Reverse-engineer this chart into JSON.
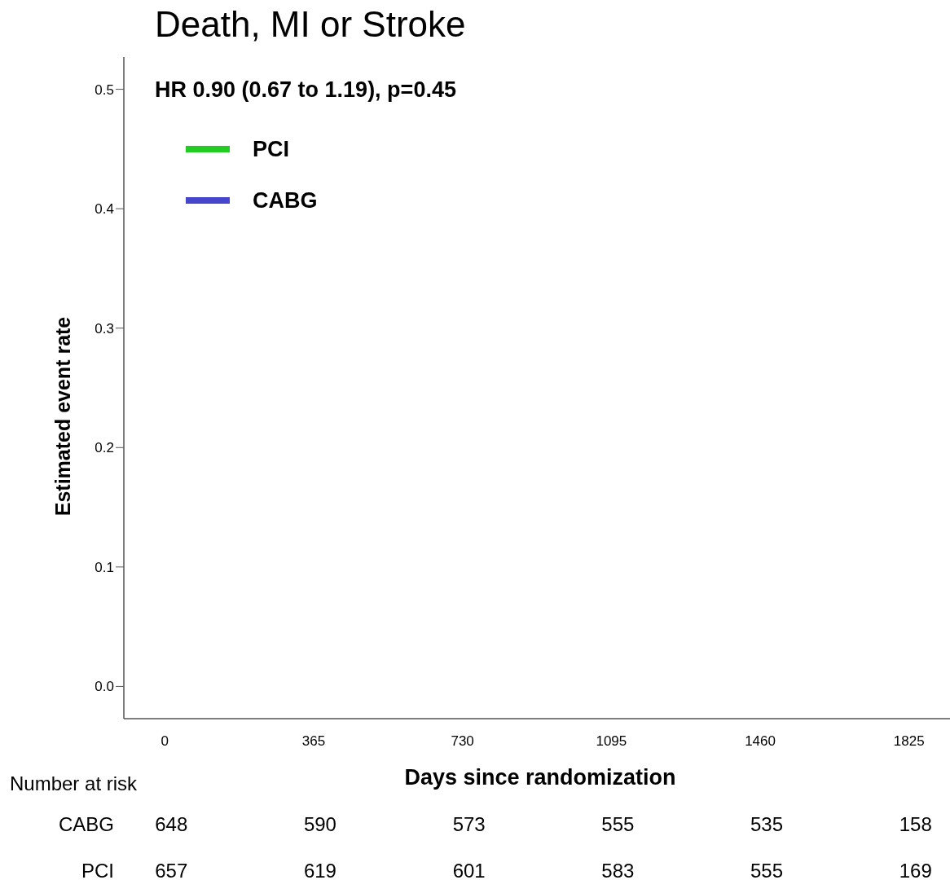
{
  "chart_data": {
    "type": "step",
    "title": "Death, MI or Stroke",
    "xlabel": "Days since randomization",
    "ylabel": "Estimated event rate",
    "series": [
      {
        "name": "PCI",
        "color": "#22cc22",
        "values": [
          null,
          null,
          null,
          null,
          null,
          null
        ]
      },
      {
        "name": "CABG",
        "color": "#4646cc",
        "values": [
          null,
          null,
          null,
          null,
          null,
          null
        ]
      }
    ],
    "categories": [
      "0",
      "365",
      "730",
      "1095",
      "1460",
      "1825"
    ],
    "ylim": [
      -0.027,
      0.527
    ],
    "yticks": [
      {
        "value": 0,
        "label": "0.0"
      },
      {
        "value": 0.1,
        "label": "0.1"
      },
      {
        "value": 0.2,
        "label": "0.2"
      },
      {
        "value": 0.3,
        "label": "0.3"
      },
      {
        "value": 0.4,
        "label": "0.4"
      },
      {
        "value": 0.5,
        "label": "0.5"
      }
    ],
    "legend": "top left",
    "grid": false,
    "annotations": [
      "HR 0.90 (0.67 to 1.19), p=0.45",
      "Number at risk",
      "CABG",
      "648",
      "590",
      "573",
      "555",
      "535",
      "158",
      "PCI",
      "657",
      "619",
      "601",
      "583",
      "555",
      "169"
    ]
  }
}
